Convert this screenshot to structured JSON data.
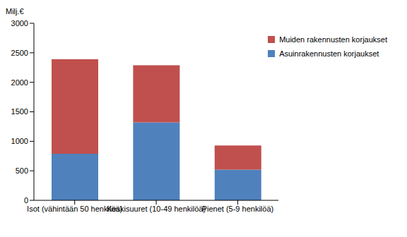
{
  "chart_data": {
    "type": "bar",
    "y_label": "Milj.€",
    "categories": [
      "Isot (vähintään  50 henkilöä)",
      "Keskisuuret (10-49 henkilöä)",
      "Pienet (5-9 henkilöä)"
    ],
    "series": [
      {
        "name": "Asuinrakennusten korjaukset",
        "color": "#4f81bd",
        "values": [
          790,
          1320,
          520
        ]
      },
      {
        "name": "Muiden rakennusten korjaukset",
        "color": "#c0504d",
        "values": [
          1600,
          970,
          410
        ]
      }
    ],
    "stacked": true,
    "ylim": [
      0,
      3000
    ],
    "yticks": [
      0,
      500,
      1000,
      1500,
      2000,
      2500,
      3000
    ],
    "grid": false,
    "legend": "upper right"
  }
}
